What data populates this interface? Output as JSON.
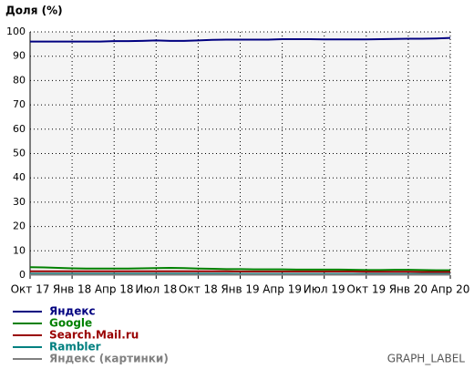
{
  "chart_data": {
    "type": "line",
    "ylabel": "Доля (%)",
    "caption": "GRAPH_LABEL",
    "categories": [
      "Окт 17",
      null,
      null,
      "Янв 18",
      null,
      null,
      "Апр 18",
      null,
      null,
      "Июл 18",
      null,
      null,
      "Окт 18",
      null,
      null,
      "Янв 19",
      null,
      null,
      "Апр 19",
      null,
      null,
      "Июл 19",
      null,
      null,
      "Окт 19",
      null,
      null,
      "Янв 20",
      null,
      null,
      "Апр 20"
    ],
    "series": [
      {
        "name": "Яндекс",
        "color": "#000080",
        "values": [
          96,
          96,
          96,
          96,
          96,
          96,
          96.2,
          96.2,
          96.3,
          96.5,
          96.3,
          96.3,
          96.5,
          96.7,
          96.8,
          96.8,
          96.8,
          96.8,
          97,
          97,
          97,
          96.9,
          96.9,
          96.9,
          96.9,
          97,
          97.1,
          97.2,
          97.2,
          97.3,
          97.5
        ]
      },
      {
        "name": "Google",
        "color": "#008000",
        "values": [
          3.3,
          3.2,
          3,
          2.8,
          2.7,
          2.7,
          2.7,
          2.7,
          2.8,
          2.9,
          3,
          2.9,
          2.7,
          2.6,
          2.5,
          2.5,
          2.4,
          2.4,
          2.4,
          2.3,
          2.3,
          2.3,
          2.3,
          2.2,
          2.1,
          2.1,
          2.2,
          2.2,
          2.1,
          2,
          2
        ]
      },
      {
        "name": "Search.Mail.ru",
        "color": "#990000",
        "values": [
          1.6,
          1.6,
          1.6,
          1.6,
          1.6,
          1.6,
          1.6,
          1.6,
          1.6,
          1.6,
          1.6,
          1.6,
          1.6,
          1.6,
          1.6,
          1.5,
          1.5,
          1.5,
          1.5,
          1.5,
          1.5,
          1.5,
          1.5,
          1.5,
          1.4,
          1.4,
          1.4,
          1.4,
          1.3,
          1.3,
          1.3
        ]
      },
      {
        "name": "Rambler",
        "color": "#008080",
        "values": [
          0.6,
          0.6,
          0.6,
          0.6,
          0.6,
          0.6,
          0.6,
          0.6,
          0.6,
          0.6,
          0.6,
          0.6,
          0.6,
          0.6,
          0.6,
          0.5,
          0.5,
          0.5,
          0.5,
          0.5,
          0.5,
          0.5,
          0.5,
          0.5,
          0.5,
          0.5,
          0.5,
          0.5,
          0.5,
          0.5,
          0.5
        ]
      },
      {
        "name": "Яндекс (картинки)",
        "color": "#808080",
        "values": [
          0.2,
          0.2,
          0.2,
          0.2,
          0.2,
          0.2,
          0.2,
          0.2,
          0.2,
          0.2,
          0.2,
          0.2,
          0.2,
          0.2,
          0.2,
          0.2,
          0.2,
          0.2,
          0.2,
          0.2,
          0.2,
          0.2,
          0.2,
          0.2,
          0.2,
          0.2,
          0.2,
          0.2,
          0.2,
          0.2,
          0.2
        ]
      }
    ],
    "ylim": [
      0,
      100
    ],
    "yticks": [
      0,
      10,
      20,
      30,
      40,
      50,
      60,
      70,
      80,
      90,
      100
    ],
    "grid": true
  }
}
